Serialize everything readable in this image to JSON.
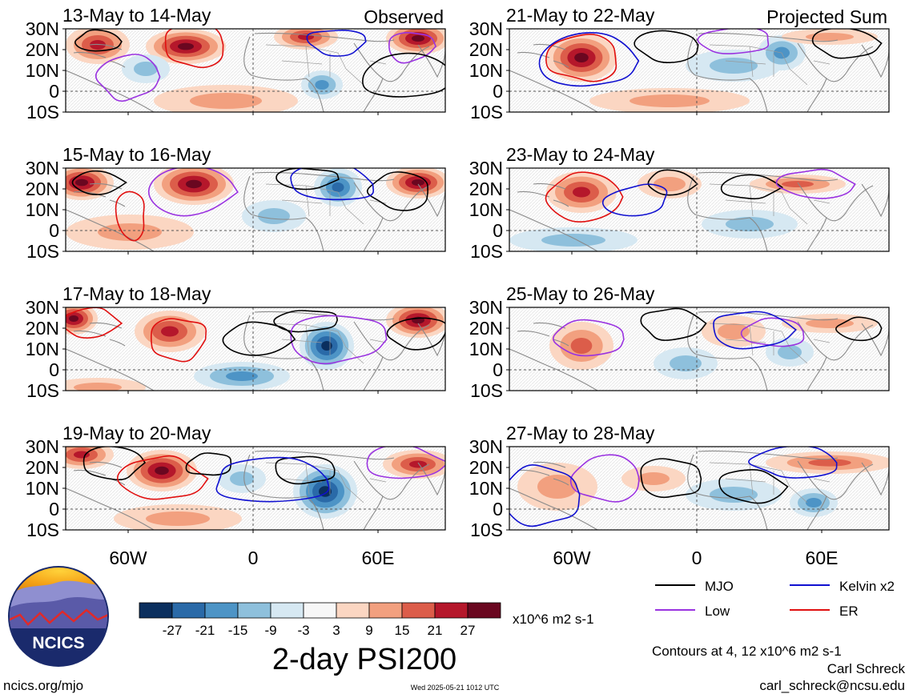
{
  "chart_data": {
    "type": "heatmap",
    "title": "2-day PSI200",
    "variable": "PSI200",
    "units": "x10^6 m2 s-1",
    "colorbar": {
      "ticks": [
        "-27",
        "-21",
        "-15",
        "-9",
        "-3",
        "3",
        "9",
        "15",
        "21",
        "27"
      ],
      "colors": [
        "#0b2f5e",
        "#2a6aa8",
        "#4d94c6",
        "#8ec0dc",
        "#d6e8f2",
        "#f7f7f7",
        "#fbd6c2",
        "#f2a07f",
        "#dc5d4a",
        "#b5172b",
        "#6a0720"
      ]
    },
    "lat_ticks": [
      "30N",
      "20N",
      "10N",
      "0",
      "10S"
    ],
    "lon_ticks": [
      "60W",
      "0",
      "60E"
    ],
    "column_labels": [
      "Observed",
      "Projected Sum"
    ],
    "panels": [
      {
        "title": "13-May to 14-May",
        "column": "Observed"
      },
      {
        "title": "15-May to 16-May",
        "column": "Observed"
      },
      {
        "title": "17-May to 18-May",
        "column": "Observed"
      },
      {
        "title": "19-May to 20-May",
        "column": "Observed"
      },
      {
        "title": "21-May to 22-May",
        "column": "Projected Sum"
      },
      {
        "title": "23-May to 24-May",
        "column": "Projected Sum"
      },
      {
        "title": "25-May to 26-May",
        "column": "Projected Sum"
      },
      {
        "title": "27-May to 28-May",
        "column": "Projected Sum"
      }
    ],
    "legend": [
      {
        "label": "MJO",
        "color": "#000000"
      },
      {
        "label": "Kelvin x2",
        "color": "#1010d0"
      },
      {
        "label": "Low",
        "color": "#9a33e0"
      },
      {
        "label": "ER",
        "color": "#e01010"
      }
    ],
    "contour_note": "Contours at 4, 12 x10^6 m2 s-1"
  },
  "logo": {
    "text": "NCICS"
  },
  "footer": {
    "url": "ncics.org/mjo",
    "timestamp": "Wed 2025-05-21 1012 UTC",
    "author": "Carl Schreck",
    "email": "carl_schreck@ncsu.edu"
  }
}
